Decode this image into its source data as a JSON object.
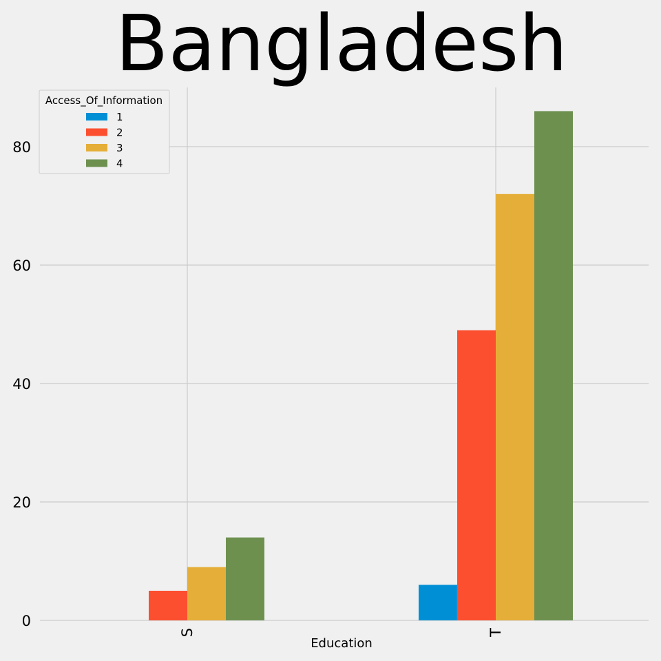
{
  "chart_data": {
    "type": "bar",
    "title": "Bangladesh",
    "xlabel": "Education",
    "ylabel": "",
    "categories": [
      "S",
      "T"
    ],
    "series": [
      {
        "name": "1",
        "values": [
          0,
          6
        ],
        "color": "#008fd5"
      },
      {
        "name": "2",
        "values": [
          5,
          49
        ],
        "color": "#fc4f30"
      },
      {
        "name": "3",
        "values": [
          9,
          72
        ],
        "color": "#e5ae38"
      },
      {
        "name": "4",
        "values": [
          14,
          86
        ],
        "color": "#6d904f"
      }
    ],
    "ylim": [
      0,
      90
    ],
    "yticks": [
      0,
      20,
      40,
      60,
      80
    ],
    "legend": {
      "title": "Access_Of_Information",
      "placement": "top-left"
    },
    "grid": true
  }
}
